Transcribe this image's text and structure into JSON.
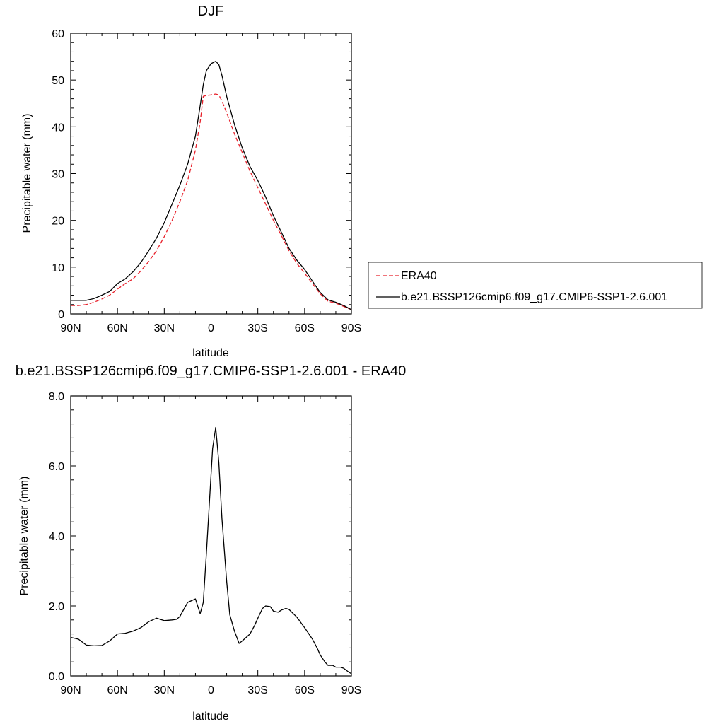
{
  "chart_data": [
    {
      "type": "line",
      "title": "DJF",
      "xlabel": "latitude",
      "ylabel": "Precipitable water (mm)",
      "xlim": [
        90,
        -90
      ],
      "ylim": [
        0,
        60
      ],
      "x_ticks": [
        90,
        60,
        30,
        0,
        -30,
        -60,
        -90
      ],
      "x_tick_labels": [
        "90N",
        "60N",
        "30N",
        "0",
        "30S",
        "60S",
        "90S"
      ],
      "y_ticks": [
        0,
        10,
        20,
        30,
        40,
        50,
        60
      ],
      "y_tick_labels": [
        "0",
        "10",
        "20",
        "30",
        "40",
        "50",
        "60"
      ],
      "legend_position": "right",
      "series": [
        {
          "name": "ERA40",
          "color": "#e8202a",
          "dash": "dashed",
          "x": [
            90,
            85,
            80,
            75,
            70,
            65,
            60,
            55,
            50,
            45,
            40,
            35,
            30,
            25,
            20,
            15,
            10,
            7,
            5,
            3,
            0,
            -3,
            -5,
            -7,
            -10,
            -15,
            -20,
            -25,
            -30,
            -35,
            -40,
            -45,
            -50,
            -55,
            -60,
            -65,
            -70,
            -75,
            -80,
            -85,
            -90
          ],
          "y": [
            1.8,
            1.8,
            2.0,
            2.5,
            3.2,
            4.0,
            5.3,
            6.5,
            7.5,
            9.2,
            11.2,
            13.5,
            16.5,
            20.0,
            24.0,
            28.5,
            35.0,
            41.0,
            46.5,
            46.7,
            46.8,
            47.0,
            46.8,
            45.5,
            43.0,
            38.5,
            34.5,
            30.5,
            27.0,
            23.5,
            20.0,
            16.8,
            13.5,
            10.8,
            8.7,
            6.5,
            4.3,
            2.7,
            2.3,
            1.6,
            0.9
          ]
        },
        {
          "name": "b.e21.BSSP126cmip6.f09_g17.CMIP6-SSP1-2.6.001",
          "color": "#000000",
          "dash": "solid",
          "x": [
            90,
            85,
            80,
            75,
            70,
            65,
            60,
            55,
            50,
            45,
            40,
            35,
            30,
            25,
            20,
            15,
            10,
            7,
            5,
            3,
            0,
            -3,
            -5,
            -7,
            -10,
            -15,
            -20,
            -25,
            -30,
            -35,
            -40,
            -45,
            -50,
            -55,
            -60,
            -65,
            -70,
            -75,
            -80,
            -85,
            -90
          ],
          "y": [
            2.9,
            2.9,
            2.9,
            3.3,
            4.0,
            4.8,
            6.5,
            7.5,
            9.0,
            11.0,
            13.5,
            16.2,
            19.5,
            23.5,
            27.5,
            32.0,
            38.0,
            44.5,
            49.0,
            52.0,
            53.5,
            54.0,
            53.3,
            51.0,
            46.5,
            40.5,
            35.5,
            31.5,
            28.5,
            25.0,
            21.0,
            17.5,
            14.0,
            11.5,
            9.5,
            7.0,
            4.6,
            3.0,
            2.5,
            1.8,
            0.9
          ]
        }
      ]
    },
    {
      "type": "line",
      "title": "b.e21.BSSP126cmip6.f09_g17.CMIP6-SSP1-2.6.001 - ERA40",
      "xlabel": "latitude",
      "ylabel": "Precipitable water (mm)",
      "xlim": [
        90,
        -90
      ],
      "ylim": [
        0,
        8
      ],
      "x_ticks": [
        90,
        60,
        30,
        0,
        -30,
        -60,
        -90
      ],
      "x_tick_labels": [
        "90N",
        "60N",
        "30N",
        "0",
        "30S",
        "60S",
        "90S"
      ],
      "y_ticks": [
        0,
        2,
        4,
        6,
        8
      ],
      "y_tick_labels": [
        "0.0",
        "2.0",
        "4.0",
        "6.0",
        "8.0"
      ],
      "series": [
        {
          "color": "#000000",
          "dash": "solid",
          "x": [
            90,
            85,
            80,
            75,
            70,
            65,
            60,
            55,
            50,
            45,
            40,
            35,
            30,
            25,
            22,
            20,
            15,
            10,
            7,
            5,
            3,
            1,
            -1,
            -3,
            -5,
            -7,
            -10,
            -12,
            -15,
            -18,
            -20,
            -25,
            -28,
            -30,
            -33,
            -35,
            -38,
            -40,
            -43,
            -45,
            -48,
            -50,
            -55,
            -60,
            -65,
            -68,
            -70,
            -73,
            -75,
            -78,
            -80,
            -83,
            -85,
            -88,
            -90
          ],
          "y": [
            1.1,
            1.05,
            0.88,
            0.86,
            0.87,
            1.0,
            1.2,
            1.22,
            1.28,
            1.38,
            1.55,
            1.65,
            1.58,
            1.6,
            1.62,
            1.7,
            2.1,
            2.2,
            1.78,
            2.1,
            3.5,
            5.0,
            6.5,
            7.1,
            6.1,
            4.5,
            2.7,
            1.75,
            1.28,
            0.93,
            1.0,
            1.2,
            1.45,
            1.65,
            1.93,
            2.0,
            1.98,
            1.85,
            1.82,
            1.88,
            1.93,
            1.9,
            1.68,
            1.38,
            1.05,
            0.8,
            0.6,
            0.4,
            0.3,
            0.3,
            0.25,
            0.25,
            0.22,
            0.12,
            0.06
          ]
        }
      ]
    }
  ]
}
